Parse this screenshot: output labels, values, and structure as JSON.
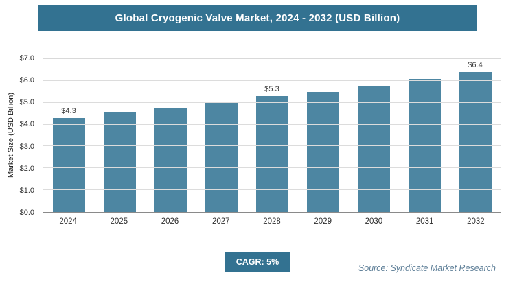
{
  "header": {
    "title": "Global Cryogenic Valve Market, 2024 - 2032 (USD Billion)"
  },
  "theme": {
    "header_bg": "#337291",
    "bar_color": "#4d86a2",
    "badge_bg": "#337291"
  },
  "chart_data": {
    "type": "bar",
    "categories": [
      "2024",
      "2025",
      "2026",
      "2027",
      "2028",
      "2029",
      "2030",
      "2031",
      "2032"
    ],
    "values": [
      4.3,
      4.55,
      4.75,
      5.0,
      5.3,
      5.5,
      5.75,
      6.1,
      6.4
    ],
    "data_labels": [
      "$4.3",
      "",
      "",
      "",
      "$5.3",
      "",
      "",
      "",
      "$6.4"
    ],
    "title": "Global Cryogenic Valve Market, 2024 - 2032 (USD Billion)",
    "xlabel": "",
    "ylabel": "Market Size (USD Billion)",
    "ylim": [
      0,
      7
    ],
    "ytick_step": 1,
    "ytick_prefix": "$",
    "grid": true,
    "legend": "none"
  },
  "footer": {
    "cagr_label": "CAGR: 5%",
    "source": "Source: Syndicate Market Research"
  }
}
